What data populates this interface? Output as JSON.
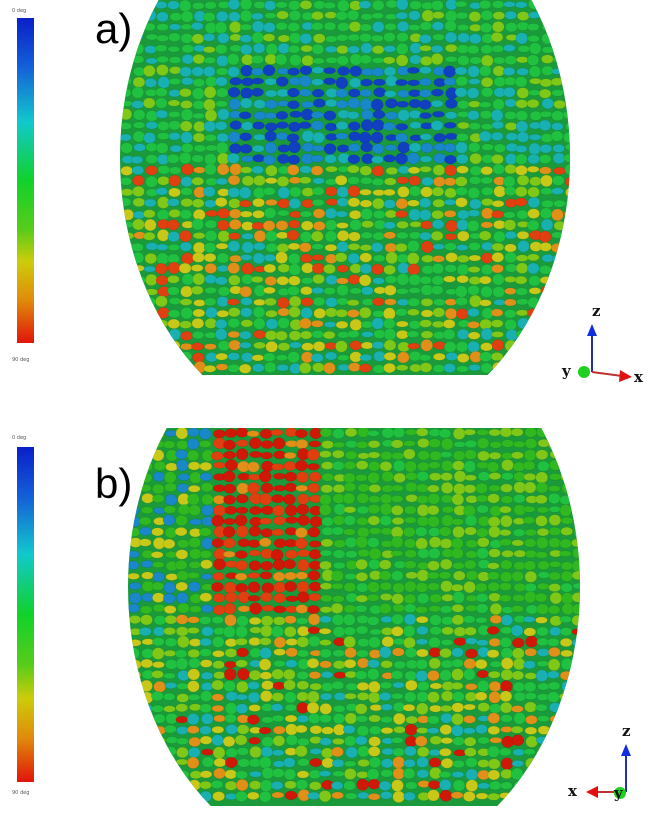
{
  "figure": {
    "panels": [
      {
        "label": "a)",
        "colorbar": {
          "top_label": "0 deg",
          "bottom_label": "90 deg",
          "colors": [
            "#0a1fc8",
            "#12c8cc",
            "#10d22a",
            "#cccc0a",
            "#e0140a"
          ]
        },
        "axes": {
          "up": "z",
          "right": "x",
          "origin": "y"
        },
        "description": "3D spheroid surface of ellipsoidal particles colored by orientation; blue band near top, green/yellow/red particles in lower half"
      },
      {
        "label": "b)",
        "colorbar": {
          "top_label": "0 deg",
          "bottom_label": "90 deg",
          "colors": [
            "#0a1fc8",
            "#12c8cc",
            "#10d22a",
            "#cccc0a",
            "#e0140a"
          ]
        },
        "axes": {
          "up": "z",
          "left": "x",
          "origin": "y"
        },
        "description": "3D spheroid surface of ellipsoidal particles colored by orientation; red region upper-left, green tilted particles upper-right, mixed lower band"
      }
    ]
  }
}
